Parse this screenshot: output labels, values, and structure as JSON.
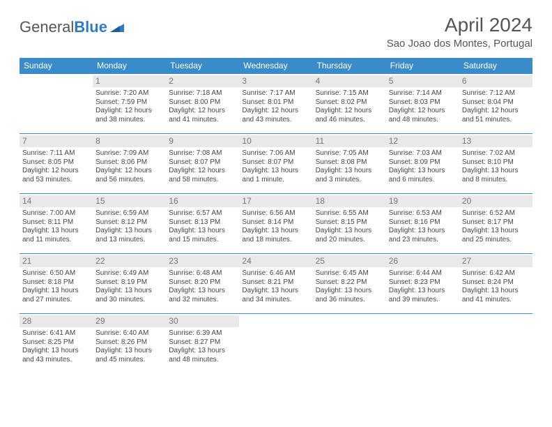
{
  "brand": {
    "part1": "General",
    "part2": "Blue"
  },
  "title": "April 2024",
  "location": "Sao Joao dos Montes, Portugal",
  "colors": {
    "header_bg": "#3a8bc9",
    "header_text": "#ffffff",
    "daynum_bg": "#e9e9e9",
    "daynum_text": "#777777",
    "cell_border": "#3a8bc9",
    "body_text": "#444444",
    "title_text": "#555555"
  },
  "weekdays": [
    "Sunday",
    "Monday",
    "Tuesday",
    "Wednesday",
    "Thursday",
    "Friday",
    "Saturday"
  ],
  "weeks": [
    [
      null,
      {
        "n": "1",
        "sr": "7:20 AM",
        "ss": "7:59 PM",
        "dl1": "Daylight: 12 hours",
        "dl2": "and 38 minutes."
      },
      {
        "n": "2",
        "sr": "7:18 AM",
        "ss": "8:00 PM",
        "dl1": "Daylight: 12 hours",
        "dl2": "and 41 minutes."
      },
      {
        "n": "3",
        "sr": "7:17 AM",
        "ss": "8:01 PM",
        "dl1": "Daylight: 12 hours",
        "dl2": "and 43 minutes."
      },
      {
        "n": "4",
        "sr": "7:15 AM",
        "ss": "8:02 PM",
        "dl1": "Daylight: 12 hours",
        "dl2": "and 46 minutes."
      },
      {
        "n": "5",
        "sr": "7:14 AM",
        "ss": "8:03 PM",
        "dl1": "Daylight: 12 hours",
        "dl2": "and 48 minutes."
      },
      {
        "n": "6",
        "sr": "7:12 AM",
        "ss": "8:04 PM",
        "dl1": "Daylight: 12 hours",
        "dl2": "and 51 minutes."
      }
    ],
    [
      {
        "n": "7",
        "sr": "7:11 AM",
        "ss": "8:05 PM",
        "dl1": "Daylight: 12 hours",
        "dl2": "and 53 minutes."
      },
      {
        "n": "8",
        "sr": "7:09 AM",
        "ss": "8:06 PM",
        "dl1": "Daylight: 12 hours",
        "dl2": "and 56 minutes."
      },
      {
        "n": "9",
        "sr": "7:08 AM",
        "ss": "8:07 PM",
        "dl1": "Daylight: 12 hours",
        "dl2": "and 58 minutes."
      },
      {
        "n": "10",
        "sr": "7:06 AM",
        "ss": "8:07 PM",
        "dl1": "Daylight: 13 hours",
        "dl2": "and 1 minute."
      },
      {
        "n": "11",
        "sr": "7:05 AM",
        "ss": "8:08 PM",
        "dl1": "Daylight: 13 hours",
        "dl2": "and 3 minutes."
      },
      {
        "n": "12",
        "sr": "7:03 AM",
        "ss": "8:09 PM",
        "dl1": "Daylight: 13 hours",
        "dl2": "and 6 minutes."
      },
      {
        "n": "13",
        "sr": "7:02 AM",
        "ss": "8:10 PM",
        "dl1": "Daylight: 13 hours",
        "dl2": "and 8 minutes."
      }
    ],
    [
      {
        "n": "14",
        "sr": "7:00 AM",
        "ss": "8:11 PM",
        "dl1": "Daylight: 13 hours",
        "dl2": "and 11 minutes."
      },
      {
        "n": "15",
        "sr": "6:59 AM",
        "ss": "8:12 PM",
        "dl1": "Daylight: 13 hours",
        "dl2": "and 13 minutes."
      },
      {
        "n": "16",
        "sr": "6:57 AM",
        "ss": "8:13 PM",
        "dl1": "Daylight: 13 hours",
        "dl2": "and 15 minutes."
      },
      {
        "n": "17",
        "sr": "6:56 AM",
        "ss": "8:14 PM",
        "dl1": "Daylight: 13 hours",
        "dl2": "and 18 minutes."
      },
      {
        "n": "18",
        "sr": "6:55 AM",
        "ss": "8:15 PM",
        "dl1": "Daylight: 13 hours",
        "dl2": "and 20 minutes."
      },
      {
        "n": "19",
        "sr": "6:53 AM",
        "ss": "8:16 PM",
        "dl1": "Daylight: 13 hours",
        "dl2": "and 23 minutes."
      },
      {
        "n": "20",
        "sr": "6:52 AM",
        "ss": "8:17 PM",
        "dl1": "Daylight: 13 hours",
        "dl2": "and 25 minutes."
      }
    ],
    [
      {
        "n": "21",
        "sr": "6:50 AM",
        "ss": "8:18 PM",
        "dl1": "Daylight: 13 hours",
        "dl2": "and 27 minutes."
      },
      {
        "n": "22",
        "sr": "6:49 AM",
        "ss": "8:19 PM",
        "dl1": "Daylight: 13 hours",
        "dl2": "and 30 minutes."
      },
      {
        "n": "23",
        "sr": "6:48 AM",
        "ss": "8:20 PM",
        "dl1": "Daylight: 13 hours",
        "dl2": "and 32 minutes."
      },
      {
        "n": "24",
        "sr": "6:46 AM",
        "ss": "8:21 PM",
        "dl1": "Daylight: 13 hours",
        "dl2": "and 34 minutes."
      },
      {
        "n": "25",
        "sr": "6:45 AM",
        "ss": "8:22 PM",
        "dl1": "Daylight: 13 hours",
        "dl2": "and 36 minutes."
      },
      {
        "n": "26",
        "sr": "6:44 AM",
        "ss": "8:23 PM",
        "dl1": "Daylight: 13 hours",
        "dl2": "and 39 minutes."
      },
      {
        "n": "27",
        "sr": "6:42 AM",
        "ss": "8:24 PM",
        "dl1": "Daylight: 13 hours",
        "dl2": "and 41 minutes."
      }
    ],
    [
      {
        "n": "28",
        "sr": "6:41 AM",
        "ss": "8:25 PM",
        "dl1": "Daylight: 13 hours",
        "dl2": "and 43 minutes."
      },
      {
        "n": "29",
        "sr": "6:40 AM",
        "ss": "8:26 PM",
        "dl1": "Daylight: 13 hours",
        "dl2": "and 45 minutes."
      },
      {
        "n": "30",
        "sr": "6:39 AM",
        "ss": "8:27 PM",
        "dl1": "Daylight: 13 hours",
        "dl2": "and 48 minutes."
      },
      null,
      null,
      null,
      null
    ]
  ]
}
